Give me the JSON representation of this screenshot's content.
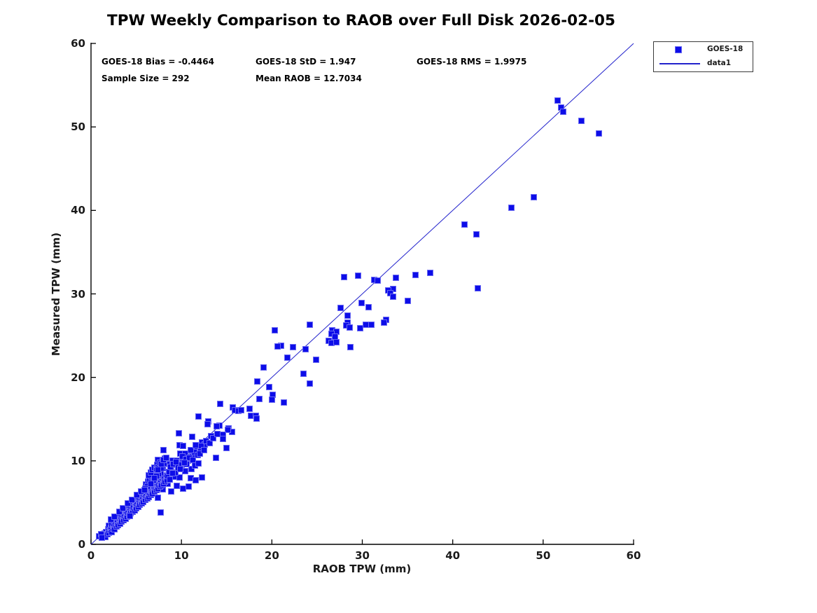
{
  "title": "TPW Weekly Comparison to RAOB over Full Disk 2026-02-05",
  "stats": {
    "bias": "GOES-18 Bias = -0.4464",
    "std": "GOES-18 StD = 1.947",
    "rms": "GOES-18 RMS = 1.9975",
    "sample_size": "Sample Size = 292",
    "mean_raob": "Mean RAOB = 12.7034"
  },
  "legend": {
    "entries": [
      {
        "label": "GOES-18",
        "type": "square-marker"
      },
      {
        "label": "data1",
        "type": "line"
      }
    ]
  },
  "colors": {
    "marker": "#0d0de8",
    "marker_edge": "#6a6af2",
    "line": "#2222cc",
    "axis": "#000000",
    "text": "#000000"
  },
  "chart_data": {
    "type": "scatter",
    "title": "TPW Weekly Comparison to RAOB over Full Disk 2026-02-05",
    "xlabel": "RAOB TPW (mm)",
    "ylabel": "Measured TPW (mm)",
    "xlim": [
      0,
      60
    ],
    "ylim": [
      0,
      60
    ],
    "xticks": [
      0,
      10,
      20,
      30,
      40,
      50,
      60
    ],
    "yticks": [
      0,
      10,
      20,
      30,
      40,
      50,
      60
    ],
    "grid": false,
    "legend_position": "outside-top-right",
    "reference_line": {
      "name": "data1",
      "from": [
        0,
        0
      ],
      "to": [
        60,
        60
      ]
    },
    "annotations": [
      "GOES-18 Bias = -0.4464",
      "GOES-18 StD = 1.947",
      "GOES-18 RMS = 1.9975",
      "Sample Size = 292",
      "Mean RAOB = 12.7034"
    ],
    "series": [
      {
        "name": "GOES-18",
        "marker": "square",
        "sample_size": 292,
        "points": [
          [
            51.6,
            53.2
          ],
          [
            52.0,
            52.3
          ],
          [
            52.2,
            51.8
          ],
          [
            54.2,
            50.7
          ],
          [
            56.2,
            49.2
          ],
          [
            49.0,
            41.6
          ],
          [
            46.5,
            40.3
          ],
          [
            41.3,
            38.3
          ],
          [
            42.6,
            37.1
          ],
          [
            42.8,
            30.7
          ],
          [
            35.9,
            32.3
          ],
          [
            37.5,
            32.5
          ],
          [
            33.7,
            31.9
          ],
          [
            33.4,
            30.6
          ],
          [
            32.9,
            30.4
          ],
          [
            33.1,
            30.1
          ],
          [
            33.4,
            29.7
          ],
          [
            35.0,
            29.2
          ],
          [
            28.0,
            32.0
          ],
          [
            29.5,
            32.2
          ],
          [
            31.3,
            31.7
          ],
          [
            31.7,
            31.6
          ],
          [
            29.9,
            28.9
          ],
          [
            30.7,
            28.4
          ],
          [
            27.6,
            28.3
          ],
          [
            28.4,
            27.4
          ],
          [
            32.6,
            26.9
          ],
          [
            32.4,
            26.6
          ],
          [
            28.4,
            26.6
          ],
          [
            28.2,
            26.2
          ],
          [
            28.6,
            26.0
          ],
          [
            29.8,
            25.9
          ],
          [
            31.0,
            26.3
          ],
          [
            30.4,
            26.3
          ],
          [
            28.7,
            23.6
          ],
          [
            24.2,
            26.3
          ],
          [
            20.3,
            25.6
          ],
          [
            26.7,
            25.6
          ],
          [
            27.1,
            25.5
          ],
          [
            26.6,
            25.2
          ],
          [
            27.0,
            24.9
          ],
          [
            26.3,
            24.4
          ],
          [
            26.6,
            24.1
          ],
          [
            27.1,
            24.2
          ],
          [
            21.0,
            23.8
          ],
          [
            20.6,
            23.7
          ],
          [
            22.3,
            23.6
          ],
          [
            23.7,
            23.4
          ],
          [
            21.7,
            22.4
          ],
          [
            24.9,
            22.1
          ],
          [
            19.1,
            21.2
          ],
          [
            23.5,
            20.4
          ],
          [
            24.2,
            19.3
          ],
          [
            18.4,
            19.5
          ],
          [
            19.7,
            18.8
          ],
          [
            20.1,
            17.9
          ],
          [
            20.0,
            17.3
          ],
          [
            21.3,
            17.0
          ],
          [
            18.6,
            17.4
          ],
          [
            14.3,
            16.8
          ],
          [
            15.7,
            16.4
          ],
          [
            15.9,
            16.1
          ],
          [
            16.3,
            16.0
          ],
          [
            16.6,
            16.1
          ],
          [
            17.5,
            16.2
          ],
          [
            17.7,
            15.4
          ],
          [
            18.2,
            15.4
          ],
          [
            18.3,
            15.1
          ],
          [
            14.2,
            14.2
          ],
          [
            13.9,
            14.1
          ],
          [
            15.2,
            13.9
          ],
          [
            15.6,
            13.5
          ],
          [
            15.1,
            13.7
          ],
          [
            14.6,
            13.1
          ],
          [
            14.6,
            12.6
          ],
          [
            15.0,
            11.5
          ],
          [
            11.9,
            15.3
          ],
          [
            13.0,
            14.7
          ],
          [
            12.9,
            14.4
          ],
          [
            9.7,
            13.3
          ],
          [
            11.2,
            12.9
          ],
          [
            12.3,
            12.2
          ],
          [
            12.6,
            12.0
          ],
          [
            13.8,
            10.4
          ],
          [
            9.8,
            11.9
          ],
          [
            10.2,
            11.8
          ],
          [
            8.0,
            11.3
          ],
          [
            9.9,
            10.9
          ],
          [
            10.4,
            10.9
          ],
          [
            11.7,
            11.2
          ],
          [
            12.1,
            11.5
          ],
          [
            11.2,
            10.5
          ],
          [
            7.4,
            10.1
          ],
          [
            9.0,
            10.0
          ],
          [
            9.5,
            10.0
          ],
          [
            10.2,
            10.1
          ],
          [
            10.7,
            10.0
          ],
          [
            8.4,
            9.6
          ],
          [
            7.9,
            9.1
          ],
          [
            8.9,
            8.8
          ],
          [
            9.7,
            9.0
          ],
          [
            10.4,
            8.8
          ],
          [
            11.1,
            9.0
          ],
          [
            11.5,
            9.4
          ],
          [
            11.9,
            9.7
          ],
          [
            8.3,
            8.3
          ],
          [
            9.2,
            8.1
          ],
          [
            9.8,
            8.0
          ],
          [
            11.0,
            7.9
          ],
          [
            11.6,
            7.7
          ],
          [
            12.3,
            8.0
          ],
          [
            8.5,
            7.3
          ],
          [
            9.5,
            7.0
          ],
          [
            10.2,
            6.7
          ],
          [
            10.8,
            6.9
          ],
          [
            7.9,
            6.6
          ],
          [
            8.9,
            6.3
          ],
          [
            7.4,
            5.6
          ],
          [
            7.7,
            3.8
          ],
          [
            1.4,
            1.0
          ],
          [
            1.5,
            1.3
          ],
          [
            1.6,
            0.9
          ],
          [
            1.7,
            1.5
          ],
          [
            1.8,
            1.2
          ],
          [
            1.9,
            1.8
          ],
          [
            2.0,
            1.4
          ],
          [
            2.0,
            2.2
          ],
          [
            2.1,
            1.7
          ],
          [
            2.2,
            2.0
          ],
          [
            2.3,
            1.5
          ],
          [
            2.3,
            2.4
          ],
          [
            2.4,
            1.9
          ],
          [
            2.5,
            2.2
          ],
          [
            2.5,
            2.8
          ],
          [
            2.6,
            1.8
          ],
          [
            2.7,
            2.4
          ],
          [
            2.8,
            2.1
          ],
          [
            2.8,
            3.0
          ],
          [
            2.9,
            2.6
          ],
          [
            3.0,
            2.3
          ],
          [
            3.0,
            3.2
          ],
          [
            3.1,
            2.8
          ],
          [
            3.2,
            2.5
          ],
          [
            3.2,
            3.4
          ],
          [
            3.3,
            3.0
          ],
          [
            3.4,
            2.7
          ],
          [
            3.4,
            3.6
          ],
          [
            3.5,
            3.2
          ],
          [
            3.6,
            2.9
          ],
          [
            3.6,
            3.8
          ],
          [
            3.7,
            3.4
          ],
          [
            3.8,
            3.1
          ],
          [
            3.8,
            4.0
          ],
          [
            3.9,
            3.6
          ],
          [
            4.0,
            3.3
          ],
          [
            4.0,
            4.2
          ],
          [
            4.1,
            3.8
          ],
          [
            4.2,
            3.5
          ],
          [
            4.2,
            4.4
          ],
          [
            4.3,
            4.0
          ],
          [
            4.4,
            3.7
          ],
          [
            4.4,
            4.6
          ],
          [
            4.5,
            4.2
          ],
          [
            4.6,
            3.9
          ],
          [
            4.6,
            4.8
          ],
          [
            4.7,
            4.4
          ],
          [
            4.8,
            4.1
          ],
          [
            4.8,
            5.0
          ],
          [
            4.9,
            4.6
          ],
          [
            5.0,
            4.3
          ],
          [
            5.0,
            5.2
          ],
          [
            5.1,
            4.8
          ],
          [
            5.2,
            4.5
          ],
          [
            5.2,
            5.4
          ],
          [
            5.3,
            5.0
          ],
          [
            5.4,
            4.7
          ],
          [
            5.4,
            5.6
          ],
          [
            5.5,
            5.2
          ],
          [
            5.6,
            4.9
          ],
          [
            5.6,
            5.8
          ],
          [
            5.7,
            5.4
          ],
          [
            5.8,
            5.1
          ],
          [
            5.8,
            6.0
          ],
          [
            5.9,
            5.6
          ],
          [
            6.0,
            5.3
          ],
          [
            6.0,
            6.2
          ],
          [
            6.1,
            5.8
          ],
          [
            6.2,
            5.5
          ],
          [
            6.2,
            6.4
          ],
          [
            6.3,
            6.0
          ],
          [
            6.4,
            5.7
          ],
          [
            6.4,
            6.6
          ],
          [
            6.5,
            6.2
          ],
          [
            6.6,
            5.9
          ],
          [
            6.6,
            6.8
          ],
          [
            6.7,
            6.4
          ],
          [
            6.8,
            6.1
          ],
          [
            6.8,
            7.0
          ],
          [
            6.9,
            6.6
          ],
          [
            7.0,
            6.3
          ],
          [
            7.0,
            7.2
          ],
          [
            7.1,
            6.8
          ],
          [
            7.2,
            6.5
          ],
          [
            7.2,
            7.4
          ],
          [
            7.3,
            7.0
          ],
          [
            7.4,
            6.7
          ],
          [
            7.4,
            7.6
          ],
          [
            7.5,
            7.2
          ],
          [
            7.6,
            6.9
          ],
          [
            7.6,
            7.8
          ],
          [
            7.7,
            7.4
          ],
          [
            7.8,
            7.1
          ],
          [
            7.8,
            8.0
          ],
          [
            7.9,
            7.6
          ],
          [
            8.0,
            7.3
          ],
          [
            8.0,
            8.2
          ],
          [
            8.1,
            7.8
          ],
          [
            8.2,
            7.5
          ],
          [
            8.3,
            8.0
          ],
          [
            8.4,
            7.7
          ],
          [
            8.5,
            8.2
          ],
          [
            6.1,
            7.2
          ],
          [
            6.3,
            7.5
          ],
          [
            6.5,
            7.8
          ],
          [
            6.7,
            8.1
          ],
          [
            6.9,
            8.4
          ],
          [
            7.1,
            8.7
          ],
          [
            6.4,
            8.3
          ],
          [
            6.6,
            8.6
          ],
          [
            6.8,
            8.9
          ],
          [
            7.0,
            9.2
          ],
          [
            7.2,
            9.0
          ],
          [
            7.3,
            9.5
          ],
          [
            7.5,
            9.3
          ],
          [
            7.6,
            9.8
          ],
          [
            7.7,
            8.6
          ],
          [
            7.8,
            9.1
          ],
          [
            7.9,
            10.0
          ],
          [
            8.1,
            9.7
          ],
          [
            8.2,
            10.3
          ],
          [
            7.5,
            8.4
          ],
          [
            7.2,
            8.2
          ],
          [
            6.9,
            7.7
          ],
          [
            6.2,
            6.9
          ],
          [
            6.6,
            7.3
          ],
          [
            7.0,
            7.9
          ],
          [
            7.4,
            8.9
          ],
          [
            7.8,
            9.6
          ],
          [
            8.0,
            10.1
          ],
          [
            8.3,
            10.4
          ],
          [
            6.0,
            6.7
          ],
          [
            0.9,
            1.0
          ],
          [
            1.1,
            1.2
          ],
          [
            1.2,
            0.8
          ],
          [
            8.6,
            8.7
          ],
          [
            8.8,
            9.3
          ],
          [
            9.1,
            9.6
          ],
          [
            9.3,
            8.6
          ],
          [
            9.4,
            9.9
          ],
          [
            9.6,
            9.2
          ],
          [
            10.0,
            9.5
          ],
          [
            10.1,
            10.5
          ],
          [
            10.5,
            10.2
          ],
          [
            10.6,
            9.6
          ],
          [
            10.9,
            10.4
          ],
          [
            11.3,
            10.1
          ],
          [
            11.4,
            11.0
          ],
          [
            11.8,
            10.7
          ],
          [
            12.0,
            10.9
          ],
          [
            12.2,
            11.8
          ],
          [
            12.5,
            11.3
          ],
          [
            12.7,
            12.4
          ],
          [
            13.1,
            12.1
          ],
          [
            13.3,
            13.0
          ],
          [
            13.5,
            12.7
          ],
          [
            14.0,
            13.2
          ],
          [
            8.7,
            7.8
          ],
          [
            9.0,
            8.5
          ],
          [
            9.9,
            9.0
          ],
          [
            10.3,
            9.8
          ],
          [
            11.0,
            11.3
          ],
          [
            11.6,
            11.9
          ],
          [
            2.2,
            3.0
          ],
          [
            2.6,
            3.3
          ],
          [
            3.1,
            3.9
          ],
          [
            3.5,
            4.3
          ],
          [
            4.1,
            4.9
          ],
          [
            4.5,
            5.3
          ],
          [
            5.1,
            5.9
          ],
          [
            5.5,
            6.3
          ],
          [
            4.3,
            3.4
          ],
          [
            5.9,
            6.5
          ]
        ]
      }
    ]
  }
}
